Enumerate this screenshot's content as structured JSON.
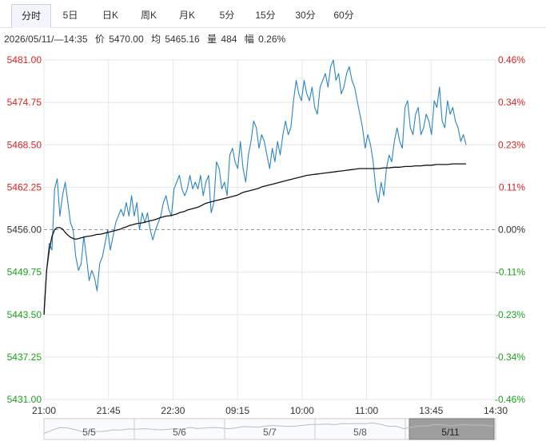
{
  "tabs": [
    "分时",
    "5日",
    "日K",
    "周K",
    "月K",
    "5分",
    "15分",
    "30分",
    "60分"
  ],
  "active_tab": "分时",
  "info": {
    "datetime": "2026/05/11/—14:35",
    "price_label": "价",
    "price": "5470.00",
    "avg_label": "均",
    "avg": "5465.16",
    "vol_label": "量",
    "vol": "484",
    "amp_label": "幅",
    "amp": "0.26%"
  },
  "colors": {
    "price_line": "#2b86c5",
    "avg_line": "#111111",
    "up": "#e02020",
    "down": "#1aa31a",
    "flat": "#333333",
    "grid": "#e6e6e6",
    "baseline": "#999999"
  },
  "chart_data": {
    "type": "line",
    "prev_close": 5456.0,
    "ylim": [
      5431.0,
      5481.0
    ],
    "y_ticks": [
      "5481.00",
      "5474.75",
      "5468.50",
      "5462.25",
      "5456.00",
      "5449.75",
      "5443.50",
      "5437.25",
      "5431.00"
    ],
    "pct_ticks": [
      "0.46%",
      "0.34%",
      "0.23%",
      "0.11%",
      "0.00%",
      "-0.11%",
      "-0.23%",
      "-0.34%",
      "-0.46%"
    ],
    "x_ticks": [
      "21:00",
      "21:45",
      "22:30",
      "09:15",
      "10:00",
      "11:00",
      "13:45",
      "14:30"
    ],
    "series": [
      {
        "values": [
          5443.5,
          5450.0,
          5454.0,
          5453.0,
          5462.0,
          5463.5,
          5458.0,
          5461.0,
          5463.0,
          5460.0,
          5457.0,
          5456.0,
          5452.0,
          5450.0,
          5451.0,
          5455.0,
          5452.0,
          5448.5,
          5450.0,
          5449.0,
          5447.0,
          5451.0,
          5452.0,
          5454.0,
          5456.0,
          5453.0,
          5455.0,
          5457.0,
          5458.0,
          5459.0,
          5458.0,
          5460.0,
          5458.0,
          5461.0,
          5458.0,
          5460.0,
          5456.0,
          5458.5,
          5457.0,
          5458.5,
          5456.0,
          5454.5,
          5456.0,
          5457.0,
          5458.0,
          5460.0,
          5461.0,
          5459.0,
          5458.0,
          5462.0,
          5463.0,
          5464.0,
          5462.0,
          5461.0,
          5462.0,
          5464.0,
          5462.0,
          5463.0,
          5462.0,
          5464.0,
          5461.0,
          5463.0,
          5464.0,
          5458.5,
          5460.0,
          5466.0,
          5465.0,
          5462.0,
          5463.0,
          5461.0,
          5467.0,
          5468.0,
          5466.0,
          5465.0,
          5469.0,
          5465.0,
          5463.0,
          5467.0,
          5469.0,
          5472.0,
          5471.0,
          5468.0,
          5470.0,
          5469.0,
          5467.0,
          5465.0,
          5468.0,
          5466.0,
          5469.0,
          5467.0,
          5470.0,
          5472.0,
          5470.0,
          5471.0,
          5475.0,
          5478.0,
          5476.0,
          5475.0,
          5478.0,
          5476.0,
          5475.0,
          5477.0,
          5474.0,
          5473.0,
          5477.0,
          5478.0,
          5479.0,
          5477.0,
          5480.0,
          5481.0,
          5478.0,
          5479.0,
          5476.0,
          5477.0,
          5479.0,
          5480.0,
          5478.0,
          5477.0,
          5475.0,
          5473.0,
          5471.0,
          5468.0,
          5470.0,
          5468.5,
          5466.0,
          5462.0,
          5460.0,
          5463.0,
          5461.0,
          5465.0,
          5467.0,
          5466.0,
          5469.0,
          5471.0,
          5469.0,
          5468.0,
          5474.0,
          5475.0,
          5471.0,
          5470.0,
          5473.0,
          5474.0,
          5470.0,
          5471.0,
          5473.0,
          5472.0,
          5470.0,
          5475.0,
          5474.0,
          5477.0,
          5472.0,
          5471.0,
          5475.0,
          5473.0,
          5474.0,
          5472.0,
          5471.0,
          5469.0,
          5470.0,
          5468.5
        ]
      },
      {
        "values": [
          5443.5,
          5450.0,
          5453.0,
          5455.0,
          5456.0,
          5456.3,
          5456.3,
          5456.1,
          5455.6,
          5455.2,
          5454.9,
          5454.7,
          5454.6,
          5454.7,
          5454.8,
          5454.9,
          5455.0,
          5455.05,
          5455.1,
          5455.2,
          5455.3,
          5455.3,
          5455.4,
          5455.5,
          5455.6,
          5455.7,
          5455.8,
          5455.9,
          5456.0,
          5456.1,
          5456.3,
          5456.4,
          5456.6,
          5456.7,
          5456.8,
          5456.9,
          5456.95,
          5457.0,
          5457.1,
          5457.2,
          5457.3,
          5457.4,
          5457.5,
          5457.65,
          5457.8,
          5457.9,
          5458.0,
          5458.05,
          5458.1,
          5458.2,
          5458.3,
          5458.5,
          5458.6,
          5458.7,
          5458.9,
          5459.0,
          5459.1,
          5459.2,
          5459.3,
          5459.5,
          5459.7,
          5459.9,
          5460.0,
          5460.1,
          5460.2,
          5460.3,
          5460.4,
          5460.5,
          5460.6,
          5460.7,
          5460.8,
          5460.9,
          5461.0,
          5461.1,
          5461.3,
          5461.5,
          5461.6,
          5461.7,
          5461.8,
          5461.9,
          5462.0,
          5462.1,
          5462.3,
          5462.4,
          5462.5,
          5462.6,
          5462.7,
          5462.8,
          5462.9,
          5463.0,
          5463.1,
          5463.2,
          5463.3,
          5463.4,
          5463.5,
          5463.6,
          5463.7,
          5463.8,
          5463.9,
          5464.0,
          5464.05,
          5464.1,
          5464.15,
          5464.2,
          5464.25,
          5464.3,
          5464.35,
          5464.4,
          5464.45,
          5464.5,
          5464.55,
          5464.6,
          5464.65,
          5464.7,
          5464.75,
          5464.8,
          5464.85,
          5464.9,
          5464.95,
          5465.0,
          5465.0,
          5465.0,
          5465.0,
          5465.0,
          5465.0,
          5465.0,
          5465.0,
          5465.05,
          5465.1,
          5465.1,
          5465.1,
          5465.15,
          5465.2,
          5465.2,
          5465.2,
          5465.25,
          5465.3,
          5465.3,
          5465.3,
          5465.35,
          5465.4,
          5465.4,
          5465.4,
          5465.45,
          5465.5,
          5465.5,
          5465.5,
          5465.55,
          5465.6,
          5465.6,
          5465.6,
          5465.6,
          5465.6,
          5465.65,
          5465.7,
          5465.7,
          5465.7,
          5465.7,
          5465.7,
          5465.7
        ]
      }
    ],
    "grid": true
  },
  "navigator": {
    "labels": [
      "5/5",
      "5/6",
      "5/7",
      "5/8",
      "5/11"
    ],
    "selected": "5/11"
  }
}
